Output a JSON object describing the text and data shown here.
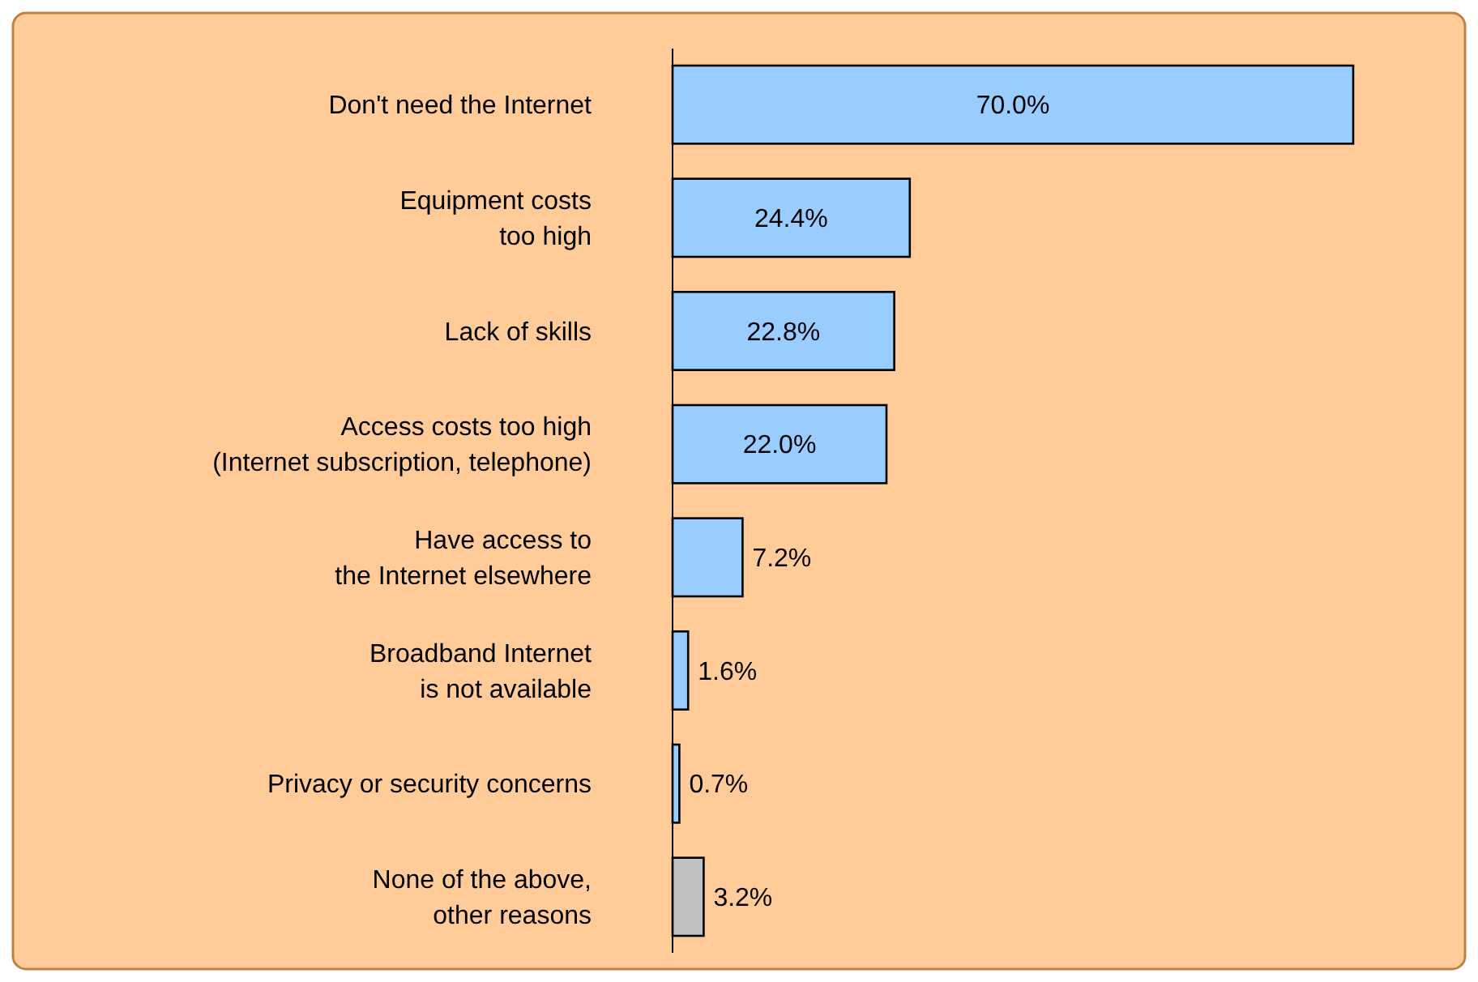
{
  "chart_data": {
    "type": "bar",
    "orientation": "horizontal",
    "data_labels": true,
    "categories": [
      "Don't need the Internet",
      "Equipment costs\ntoo high",
      "Lack of skills",
      "Access costs too high\n(Internet subscription, telephone)",
      "Have access to\nthe Internet elsewhere",
      "Broadband Internet\nis not available",
      "Privacy or security concerns",
      "None of the above,\nother reasons"
    ],
    "values": [
      70.0,
      24.4,
      22.8,
      22.0,
      7.2,
      1.6,
      0.7,
      3.2
    ],
    "colors": [
      "#99ccff",
      "#99ccff",
      "#99ccff",
      "#99ccff",
      "#99ccff",
      "#99ccff",
      "#99ccff",
      "#c0c0c0"
    ],
    "value_labels": [
      "70.0%",
      "24.4%",
      "22.8%",
      "22.0%",
      "7.2%",
      "1.6%",
      "0.7%",
      "3.2%"
    ]
  }
}
